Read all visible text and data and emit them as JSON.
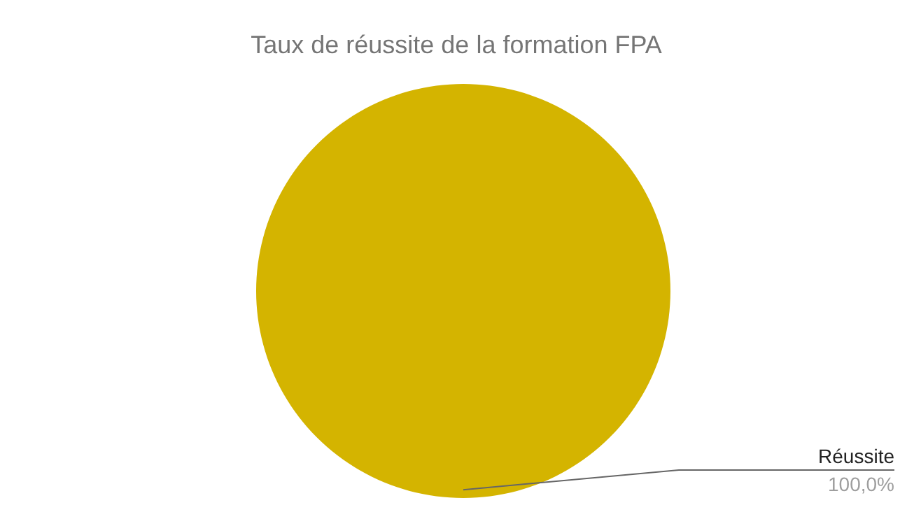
{
  "chart_data": {
    "type": "pie",
    "title": "Taux de réussite de la formation FPA",
    "categories": [
      "Réussite"
    ],
    "values": [
      100
    ],
    "colors": [
      "#d4b400"
    ],
    "value_labels": [
      "100,0%"
    ]
  }
}
